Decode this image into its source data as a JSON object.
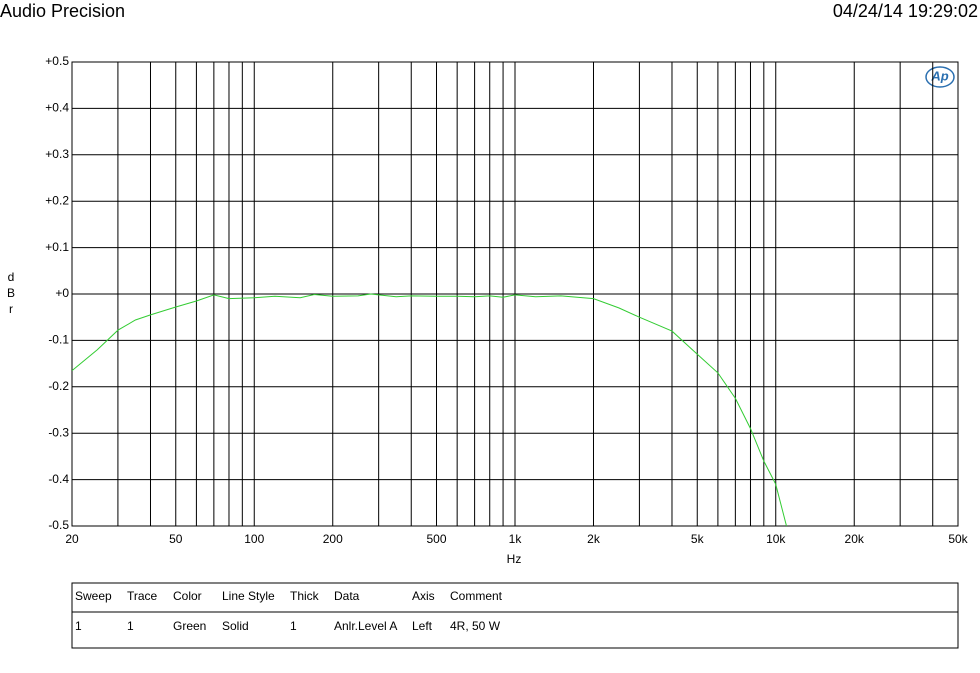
{
  "chart_data": {
    "type": "line",
    "title": "Audio Precision",
    "timestamp": "04/24/14 19:29:02",
    "logo": "Ap",
    "xlabel": "Hz",
    "ylabel": "dBr",
    "xscale": "log",
    "grid": true,
    "xlim": [
      20,
      50000
    ],
    "ylim": [
      -0.5,
      0.5
    ],
    "xticks": [
      20,
      50,
      100,
      200,
      500,
      {
        "value": 1000,
        "label": "1k"
      },
      {
        "value": 2000,
        "label": "2k"
      },
      {
        "value": 5000,
        "label": "5k"
      },
      {
        "value": 10000,
        "label": "10k"
      },
      {
        "value": 20000,
        "label": "20k"
      },
      {
        "value": 50000,
        "label": "50k"
      }
    ],
    "xminor_ticks": [
      30,
      40,
      60,
      70,
      80,
      90,
      300,
      400,
      600,
      700,
      800,
      900,
      3000,
      4000,
      6000,
      7000,
      8000,
      9000,
      30000,
      40000
    ],
    "yticks": [
      {
        "value": 0.5,
        "label": "+0.5"
      },
      {
        "value": 0.4,
        "label": "+0.4"
      },
      {
        "value": 0.3,
        "label": "+0.3"
      },
      {
        "value": 0.2,
        "label": "+0.2"
      },
      {
        "value": 0.1,
        "label": "+0.1"
      },
      {
        "value": 0,
        "label": "+0"
      },
      -0.1,
      -0.2,
      -0.3,
      -0.4,
      -0.5
    ],
    "x": [
      20,
      25,
      30,
      35,
      40,
      50,
      60,
      70,
      80,
      100,
      120,
      150,
      170,
      200,
      250,
      280,
      350,
      400,
      500,
      600,
      700,
      800,
      900,
      1000,
      1200,
      1500,
      2000,
      2500,
      3000,
      4000,
      5000,
      6000,
      7000,
      8000,
      9000,
      10000,
      11000
    ],
    "series": [
      {
        "name": "Anlr.Level A",
        "color": "#33cc33",
        "values": [
          -0.165,
          -0.12,
          -0.078,
          -0.056,
          -0.045,
          -0.028,
          -0.015,
          -0.002,
          -0.01,
          -0.008,
          -0.005,
          -0.008,
          -0.001,
          -0.005,
          -0.004,
          0,
          -0.006,
          -0.004,
          -0.005,
          -0.005,
          -0.006,
          -0.004,
          -0.007,
          -0.002,
          -0.006,
          -0.004,
          -0.01,
          -0.03,
          -0.05,
          -0.08,
          -0.13,
          -0.17,
          -0.225,
          -0.29,
          -0.36,
          -0.41,
          -0.5
        ]
      }
    ],
    "legend_table": {
      "headers": [
        "Sweep",
        "Trace",
        "Color",
        "Line Style",
        "Thick",
        "Data",
        "Axis",
        "Comment"
      ],
      "rows": [
        [
          "1",
          "1",
          "Green",
          "Solid",
          "1",
          "Anlr.Level A",
          "Left",
          "4R, 50 W"
        ]
      ]
    }
  }
}
